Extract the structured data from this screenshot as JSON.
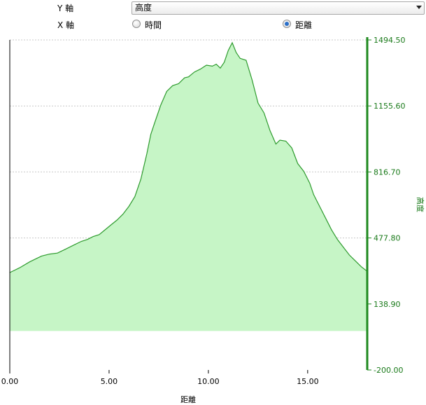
{
  "controls": {
    "y_axis_label": "Y 軸",
    "y_select_value": "高度",
    "x_axis_label": "X 軸",
    "x_options": [
      {
        "label": "時間",
        "checked": false
      },
      {
        "label": "距離",
        "checked": true
      }
    ]
  },
  "colors": {
    "line": "#2e9b2e",
    "fill": "#c6f5c6",
    "right_axis": "#1f8a1f",
    "right_tick_text": "#1a7a1a",
    "left_axis": "#000000",
    "grid": "#c8c8c8"
  },
  "chart_data": {
    "type": "area",
    "title": "",
    "xlabel": "距離",
    "ylabel": "高度",
    "xlim": [
      0,
      18
    ],
    "ylim": [
      -200,
      1494.5
    ],
    "x_ticks": [
      0,
      5,
      10,
      15
    ],
    "x_tick_labels": [
      "0.00",
      "5.00",
      "10.00",
      "15.00"
    ],
    "y_ticks": [
      -200,
      138.9,
      477.8,
      816.7,
      1155.6,
      1494.5
    ],
    "y_tick_labels": [
      "-200.00",
      "138.90",
      "477.80",
      "816.70",
      "1155.60",
      "1494.50"
    ],
    "y_axis_side": "right",
    "grid": {
      "horizontal": true,
      "style": "dashed"
    },
    "fill_baseline": 0,
    "series": [
      {
        "name": "高度",
        "x": [
          0,
          0.1,
          0.5,
          1.0,
          1.3,
          1.6,
          2.0,
          2.4,
          2.8,
          3.2,
          3.6,
          3.9,
          4.2,
          4.5,
          4.8,
          5.1,
          5.4,
          5.7,
          6.0,
          6.3,
          6.6,
          6.9,
          7.1,
          7.3,
          7.6,
          7.9,
          8.2,
          8.5,
          8.8,
          9.0,
          9.3,
          9.6,
          9.9,
          10.2,
          10.4,
          10.6,
          10.8,
          11.0,
          11.2,
          11.4,
          11.6,
          11.9,
          12.2,
          12.5,
          12.8,
          13.1,
          13.4,
          13.6,
          13.9,
          14.2,
          14.5,
          14.8,
          15.1,
          15.3,
          15.6,
          15.9,
          16.2,
          16.5,
          16.8,
          17.1,
          17.4,
          17.7,
          17.95
        ],
        "y": [
          300,
          305,
          325,
          355,
          370,
          385,
          395,
          400,
          420,
          440,
          460,
          470,
          485,
          495,
          520,
          545,
          570,
          600,
          640,
          690,
          780,
          910,
          1010,
          1070,
          1160,
          1230,
          1260,
          1270,
          1300,
          1305,
          1330,
          1345,
          1365,
          1360,
          1370,
          1350,
          1380,
          1440,
          1480,
          1430,
          1400,
          1390,
          1290,
          1170,
          1120,
          1030,
          960,
          980,
          975,
          940,
          860,
          820,
          760,
          700,
          640,
          580,
          520,
          470,
          430,
          390,
          360,
          330,
          310
        ]
      }
    ]
  }
}
